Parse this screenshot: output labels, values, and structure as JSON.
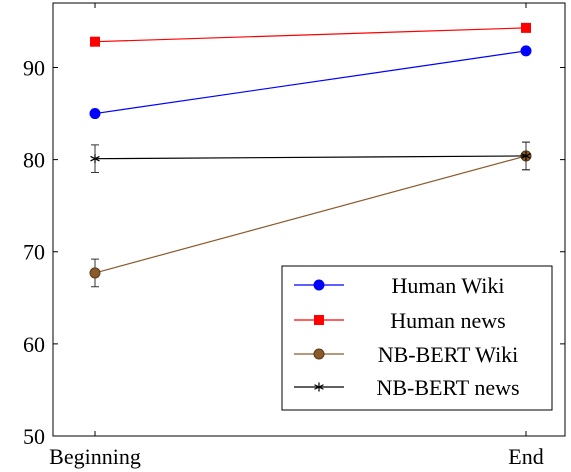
{
  "chart_data": {
    "type": "line",
    "categories": [
      "Beginning",
      "End"
    ],
    "yticks": [
      50,
      60,
      70,
      80,
      90
    ],
    "ylim": [
      50,
      97
    ],
    "grid": false,
    "legend_position": "bottom-right",
    "series": [
      {
        "name": "Human Wiki",
        "values": [
          85.0,
          91.8
        ],
        "color": "#0000ff",
        "marker": "circle"
      },
      {
        "name": "Human news",
        "values": [
          92.8,
          94.3
        ],
        "color": "#ff0000",
        "marker": "square"
      },
      {
        "name": "NB-BERT Wiki",
        "values": [
          67.7,
          80.4
        ],
        "color": "#8b5a2b",
        "marker": "circle",
        "errors": [
          1.5,
          1.5
        ]
      },
      {
        "name": "NB-BERT news",
        "values": [
          80.1,
          80.4
        ],
        "color": "#000000",
        "marker": "star",
        "errors": [
          1.5,
          1.5
        ]
      }
    ]
  }
}
